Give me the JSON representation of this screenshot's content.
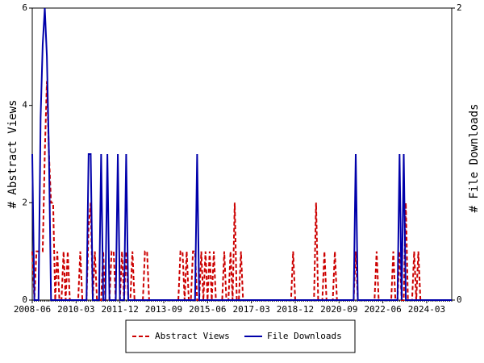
{
  "chart_data": {
    "type": "line",
    "ylabel": "# Abstract Views",
    "y2label": "# File Downloads",
    "ylim": [
      0,
      6
    ],
    "yticks": [
      0,
      2,
      4,
      6
    ],
    "y2lim": [
      0,
      2
    ],
    "y2ticks": [
      0,
      2
    ],
    "legend": "bottom",
    "categories": [
      "2008-06",
      null,
      null,
      null,
      null,
      null,
      null,
      null,
      null,
      null,
      null,
      null,
      null,
      null,
      null,
      null,
      null,
      null,
      null,
      null,
      null,
      "2010-03",
      null,
      null,
      null,
      null,
      null,
      null,
      null,
      null,
      null,
      null,
      null,
      null,
      null,
      null,
      null,
      null,
      null,
      null,
      null,
      null,
      "2011-12",
      null,
      null,
      null,
      null,
      null,
      null,
      null,
      null,
      null,
      null,
      null,
      null,
      null,
      null,
      null,
      null,
      null,
      null,
      null,
      null,
      "2013-09",
      null,
      null,
      null,
      null,
      null,
      null,
      null,
      null,
      null,
      null,
      null,
      null,
      null,
      null,
      null,
      null,
      null,
      null,
      null,
      null,
      "2015-06",
      null,
      null,
      null,
      null,
      null,
      null,
      null,
      null,
      null,
      null,
      null,
      null,
      null,
      null,
      null,
      null,
      null,
      null,
      null,
      null,
      "2017-03",
      null,
      null,
      null,
      null,
      null,
      null,
      null,
      null,
      null,
      null,
      null,
      null,
      null,
      null,
      null,
      null,
      null,
      null,
      null,
      null,
      "2018-12",
      null,
      null,
      null,
      null,
      null,
      null,
      null,
      null,
      null,
      null,
      null,
      null,
      null,
      null,
      null,
      null,
      null,
      null,
      null,
      null,
      "2020-09",
      null,
      null,
      null,
      null,
      null,
      null,
      null,
      null,
      null,
      null,
      null,
      null,
      null,
      null,
      null,
      null,
      null,
      null,
      null,
      null,
      "2022-06",
      null,
      null,
      null,
      null,
      null,
      null,
      null,
      null,
      null,
      null,
      null,
      null,
      null,
      null,
      null,
      null,
      null,
      null,
      null,
      null,
      "2024-03",
      null,
      null,
      null,
      null,
      null,
      null,
      null,
      null,
      null,
      null,
      null,
      null
    ],
    "series": [
      {
        "name": "Abstract Views",
        "color": "#cc0000",
        "dashed": true,
        "values": [
          1,
          0,
          1,
          1,
          1,
          1,
          3,
          4.5,
          3,
          2,
          2,
          0,
          1,
          0,
          0,
          1,
          0,
          1,
          0,
          0,
          0,
          0,
          0,
          1,
          0,
          0,
          0,
          1.5,
          2,
          0,
          1,
          0,
          0,
          0,
          1,
          0,
          0,
          0,
          1,
          1,
          0,
          0,
          0,
          1,
          0,
          1,
          0,
          0,
          1,
          0,
          0,
          0,
          0,
          0,
          1,
          1,
          0,
          0,
          0,
          0,
          0,
          0,
          0,
          0,
          0,
          0,
          0,
          0,
          0,
          0,
          0,
          1,
          1,
          0,
          1,
          0,
          0,
          1,
          1,
          0,
          0,
          1,
          0,
          1,
          0,
          1,
          0,
          1,
          0,
          0,
          0,
          0,
          1,
          0,
          0,
          1,
          0,
          2,
          0,
          0,
          1,
          0,
          0,
          0,
          0,
          0,
          0,
          0,
          0,
          0,
          0,
          0,
          0,
          0,
          0,
          0,
          0,
          0,
          0,
          0,
          0,
          0,
          0,
          0,
          0,
          1,
          0,
          0,
          0,
          0,
          0,
          0,
          0,
          0,
          0,
          0,
          2,
          0,
          0,
          0,
          1,
          0,
          0,
          0,
          0,
          1,
          0,
          0,
          0,
          0,
          0,
          0,
          0,
          0,
          0,
          1,
          0,
          0,
          0,
          0,
          0,
          0,
          0,
          0,
          0,
          1,
          0,
          0,
          0,
          0,
          0,
          0,
          0,
          1,
          0,
          0,
          1,
          0,
          0,
          2,
          0,
          0,
          0,
          1,
          0,
          1,
          0,
          0,
          0,
          0,
          0,
          0,
          0,
          0,
          0,
          0,
          0,
          0,
          0,
          0,
          0,
          0
        ]
      },
      {
        "name": "File Downloads",
        "color": "#0000aa",
        "dashed": false,
        "axis": "y2",
        "values": [
          1,
          0,
          0,
          0,
          1.25,
          1.75,
          2,
          1.67,
          1,
          0,
          0,
          0,
          0,
          0,
          0,
          0,
          0,
          0,
          0,
          0,
          0,
          0,
          0,
          0,
          0,
          0,
          0,
          1,
          1,
          0,
          0,
          0,
          0,
          1,
          0,
          0,
          1,
          0,
          0,
          0,
          0,
          1,
          0,
          0,
          0,
          1,
          0,
          0,
          0,
          0,
          0,
          0,
          0,
          0,
          0,
          0,
          0,
          0,
          0,
          0,
          0,
          0,
          0,
          0,
          0,
          0,
          0,
          0,
          0,
          0,
          0,
          0,
          0,
          0,
          0,
          0,
          0,
          0,
          0,
          1,
          0,
          0,
          0,
          0,
          0,
          0,
          0,
          0,
          0,
          0,
          0,
          0,
          0,
          0,
          0,
          0,
          0,
          0,
          0,
          0,
          0,
          0,
          0,
          0,
          0,
          0,
          0,
          0,
          0,
          0,
          0,
          0,
          0,
          0,
          0,
          0,
          0,
          0,
          0,
          0,
          0,
          0,
          0,
          0,
          0,
          0,
          0,
          0,
          0,
          0,
          0,
          0,
          0,
          0,
          0,
          0,
          0,
          0,
          0,
          0,
          0,
          0,
          0,
          0,
          0,
          0,
          0,
          0,
          0,
          0,
          0,
          0,
          0,
          0,
          0,
          1,
          0,
          0,
          0,
          0,
          0,
          0,
          0,
          0,
          0,
          0,
          0,
          0,
          0,
          0,
          0,
          0,
          0,
          0,
          0,
          0,
          1,
          0,
          1,
          0,
          0,
          0,
          0,
          0,
          0,
          0,
          0,
          0,
          0,
          0,
          0,
          0,
          0,
          0,
          0,
          0,
          0,
          0,
          0,
          0,
          0,
          0
        ]
      }
    ]
  }
}
